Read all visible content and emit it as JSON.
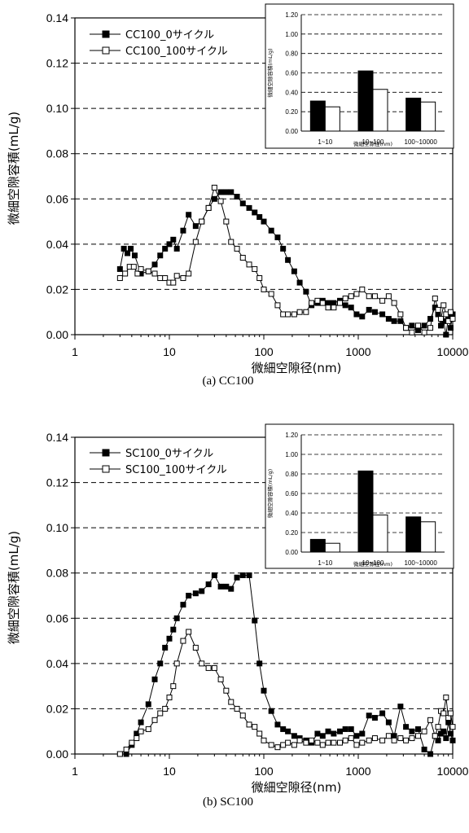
{
  "chart_data": [
    {
      "type": "line",
      "caption": "(a) CC100",
      "xlabel": "微細空隙径(nm)",
      "ylabel": "微細空隙容積(mL/g)",
      "xscale": "log",
      "xlim": [
        1,
        10000
      ],
      "ylim": [
        0,
        0.14
      ],
      "xticks": [
        "1",
        "10",
        "100",
        "1000",
        "10000"
      ],
      "yticks": [
        "0.00",
        "0.02",
        "0.04",
        "0.06",
        "0.08",
        "0.10",
        "0.12",
        "0.14"
      ],
      "grid": "horizontal dashed",
      "legend": "top-left",
      "series": [
        {
          "name": "CC100_0サイクル",
          "marker": "filled-square",
          "color": "#000000",
          "x": [
            3,
            3.3,
            3.6,
            3.9,
            4.3,
            5,
            6,
            7,
            8,
            9,
            10,
            11,
            12,
            14,
            16,
            19,
            22,
            26,
            30,
            35,
            40,
            45,
            52,
            60,
            70,
            80,
            90,
            100,
            120,
            140,
            160,
            180,
            210,
            240,
            280,
            320,
            370,
            420,
            480,
            550,
            640,
            730,
            840,
            960,
            1100,
            1300,
            1500,
            1800,
            2100,
            2400,
            2800,
            3200,
            3700,
            4300,
            5000,
            5800,
            6500,
            7000,
            7500,
            8000,
            8500,
            9000,
            9500,
            10000
          ],
          "y": [
            0.029,
            0.038,
            0.036,
            0.038,
            0.035,
            0.027,
            0.028,
            0.031,
            0.035,
            0.038,
            0.04,
            0.042,
            0.038,
            0.046,
            0.053,
            0.048,
            0.05,
            0.056,
            0.06,
            0.063,
            0.063,
            0.063,
            0.061,
            0.058,
            0.056,
            0.054,
            0.052,
            0.05,
            0.046,
            0.043,
            0.038,
            0.033,
            0.028,
            0.023,
            0.019,
            0.013,
            0.014,
            0.015,
            0.014,
            0.014,
            0.015,
            0.013,
            0.012,
            0.009,
            0.008,
            0.011,
            0.01,
            0.009,
            0.007,
            0.006,
            0.006,
            0.003,
            0.004,
            0.002,
            0.004,
            0.007,
            0.012,
            0.009,
            0.004,
            0.006,
            0,
            0.008,
            0.003,
            0.009
          ]
        },
        {
          "name": "CC100_100サイクル",
          "marker": "open-square",
          "color": "#000000",
          "x": [
            3,
            3.4,
            3.8,
            4.2,
            4.6,
            5,
            6,
            7,
            8,
            9,
            10,
            11,
            12,
            14,
            16,
            19,
            22,
            26,
            30,
            35,
            40,
            45,
            52,
            60,
            70,
            80,
            90,
            100,
            120,
            140,
            160,
            180,
            210,
            240,
            280,
            320,
            370,
            420,
            480,
            550,
            640,
            730,
            840,
            960,
            1100,
            1300,
            1500,
            1800,
            2100,
            2400,
            2800,
            3200,
            3700,
            4300,
            5000,
            5800,
            6500,
            7000,
            7500,
            8000,
            8500,
            9000,
            9500,
            10000
          ],
          "y": [
            0.025,
            0.027,
            0.03,
            0.03,
            0.027,
            0.029,
            0.028,
            0.027,
            0.025,
            0.025,
            0.023,
            0.023,
            0.026,
            0.025,
            0.027,
            0.041,
            0.05,
            0.056,
            0.065,
            0.059,
            0.05,
            0.041,
            0.038,
            0.034,
            0.031,
            0.029,
            0.025,
            0.02,
            0.018,
            0.013,
            0.009,
            0.009,
            0.009,
            0.01,
            0.01,
            0.014,
            0.015,
            0.014,
            0.012,
            0.012,
            0.014,
            0.016,
            0.017,
            0.018,
            0.02,
            0.017,
            0.017,
            0.015,
            0.017,
            0.014,
            0.009,
            0.003,
            0.001,
            0.004,
            0.001,
            0.003,
            0.016,
            0.011,
            0.007,
            0.013,
            0.009,
            0.006,
            0.01,
            0.007
          ]
        }
      ],
      "inset": {
        "type": "bar",
        "xlabel": "微細空隙径(nm)",
        "ylabel": "微細空隙容積(mL/g)",
        "ylim": [
          0,
          1.2
        ],
        "yticks": [
          "0.00",
          "0.20",
          "0.40",
          "0.60",
          "0.80",
          "1.00",
          "1.20"
        ],
        "categories": [
          "1~10",
          "10~100",
          "100~10000"
        ],
        "series": [
          {
            "fill": "#000000",
            "values": [
              0.31,
              0.62,
              0.34
            ]
          },
          {
            "fill": "#ffffff",
            "values": [
              0.25,
              0.43,
              0.3
            ]
          }
        ]
      }
    },
    {
      "type": "line",
      "caption": "(b) SC100",
      "xlabel": "微細空隙径(nm)",
      "ylabel": "微細空隙容積(mL/g)",
      "xscale": "log",
      "xlim": [
        1,
        10000
      ],
      "ylim": [
        0,
        0.14
      ],
      "xticks": [
        "1",
        "10",
        "100",
        "1000",
        "10000"
      ],
      "yticks": [
        "0.00",
        "0.02",
        "0.04",
        "0.06",
        "0.08",
        "0.10",
        "0.12",
        "0.14"
      ],
      "grid": "horizontal dashed",
      "legend": "top-left",
      "series": [
        {
          "name": "SC100_0サイクル",
          "marker": "filled-square",
          "color": "#000000",
          "x": [
            3,
            3.5,
            4,
            4.5,
            5,
            6,
            7,
            8,
            9,
            10,
            11,
            12,
            14,
            16,
            19,
            22,
            26,
            30,
            35,
            40,
            45,
            52,
            60,
            70,
            80,
            90,
            100,
            120,
            140,
            160,
            180,
            210,
            240,
            280,
            320,
            370,
            420,
            480,
            550,
            640,
            730,
            840,
            960,
            1100,
            1300,
            1500,
            1800,
            2100,
            2400,
            2800,
            3200,
            3700,
            4300,
            5000,
            5800,
            6500,
            7000,
            7500,
            8000,
            8500,
            9000,
            9500,
            10000
          ],
          "y": [
            0,
            0,
            0.004,
            0.009,
            0.014,
            0.022,
            0.033,
            0.04,
            0.047,
            0.051,
            0.055,
            0.06,
            0.066,
            0.07,
            0.071,
            0.072,
            0.075,
            0.079,
            0.074,
            0.074,
            0.073,
            0.078,
            0.079,
            0.079,
            0.059,
            0.04,
            0.028,
            0.019,
            0.013,
            0.011,
            0.01,
            0.008,
            0.007,
            0.006,
            0.005,
            0.009,
            0.008,
            0.01,
            0.009,
            0.01,
            0.011,
            0.011,
            0.008,
            0.009,
            0.017,
            0.016,
            0.018,
            0.014,
            0.008,
            0.021,
            0.012,
            0.01,
            0.011,
            0.002,
            0.0,
            0.008,
            0.006,
            0.009,
            0.01,
            0.007,
            0.014,
            0.009,
            0.006
          ]
        },
        {
          "name": "SC100_100サイクル",
          "marker": "open-square",
          "color": "#000000",
          "x": [
            3,
            3.5,
            4,
            4.5,
            5,
            6,
            7,
            8,
            9,
            10,
            11,
            12,
            14,
            16,
            19,
            22,
            26,
            30,
            35,
            40,
            45,
            52,
            60,
            70,
            80,
            90,
            100,
            120,
            140,
            160,
            180,
            210,
            240,
            280,
            320,
            370,
            420,
            480,
            550,
            640,
            730,
            840,
            960,
            1100,
            1300,
            1500,
            1800,
            2100,
            2400,
            2800,
            3200,
            3700,
            4300,
            5000,
            5800,
            6500,
            7000,
            7500,
            8000,
            8500,
            9000,
            9500,
            10000
          ],
          "y": [
            0,
            0.002,
            0.005,
            0.007,
            0.01,
            0.011,
            0.015,
            0.018,
            0.02,
            0.025,
            0.03,
            0.04,
            0.05,
            0.054,
            0.047,
            0.04,
            0.038,
            0.038,
            0.033,
            0.028,
            0.023,
            0.02,
            0.017,
            0.013,
            0.012,
            0.009,
            0.006,
            0.004,
            0.003,
            0.004,
            0.005,
            0.004,
            0.006,
            0.005,
            0.006,
            0.005,
            0.004,
            0.005,
            0.005,
            0.005,
            0.006,
            0.007,
            0.004,
            0.005,
            0.006,
            0.007,
            0.006,
            0.008,
            0.006,
            0.007,
            0.006,
            0.007,
            0.008,
            0.01,
            0.015,
            0.008,
            0.012,
            0.019,
            0.018,
            0.025,
            0.016,
            0.018,
            0.012
          ]
        }
      ],
      "inset": {
        "type": "bar",
        "xlabel": "微細空隙径(nm)",
        "ylabel": "微細空隙容積(mL/g)",
        "ylim": [
          0,
          1.2
        ],
        "yticks": [
          "0.00",
          "0.20",
          "0.40",
          "0.60",
          "0.80",
          "1.00",
          "1.20"
        ],
        "categories": [
          "1~10",
          "10~100",
          "100~10000"
        ],
        "series": [
          {
            "fill": "#000000",
            "values": [
              0.13,
              0.83,
              0.36
            ]
          },
          {
            "fill": "#ffffff",
            "values": [
              0.09,
              0.38,
              0.31
            ]
          }
        ]
      }
    }
  ]
}
